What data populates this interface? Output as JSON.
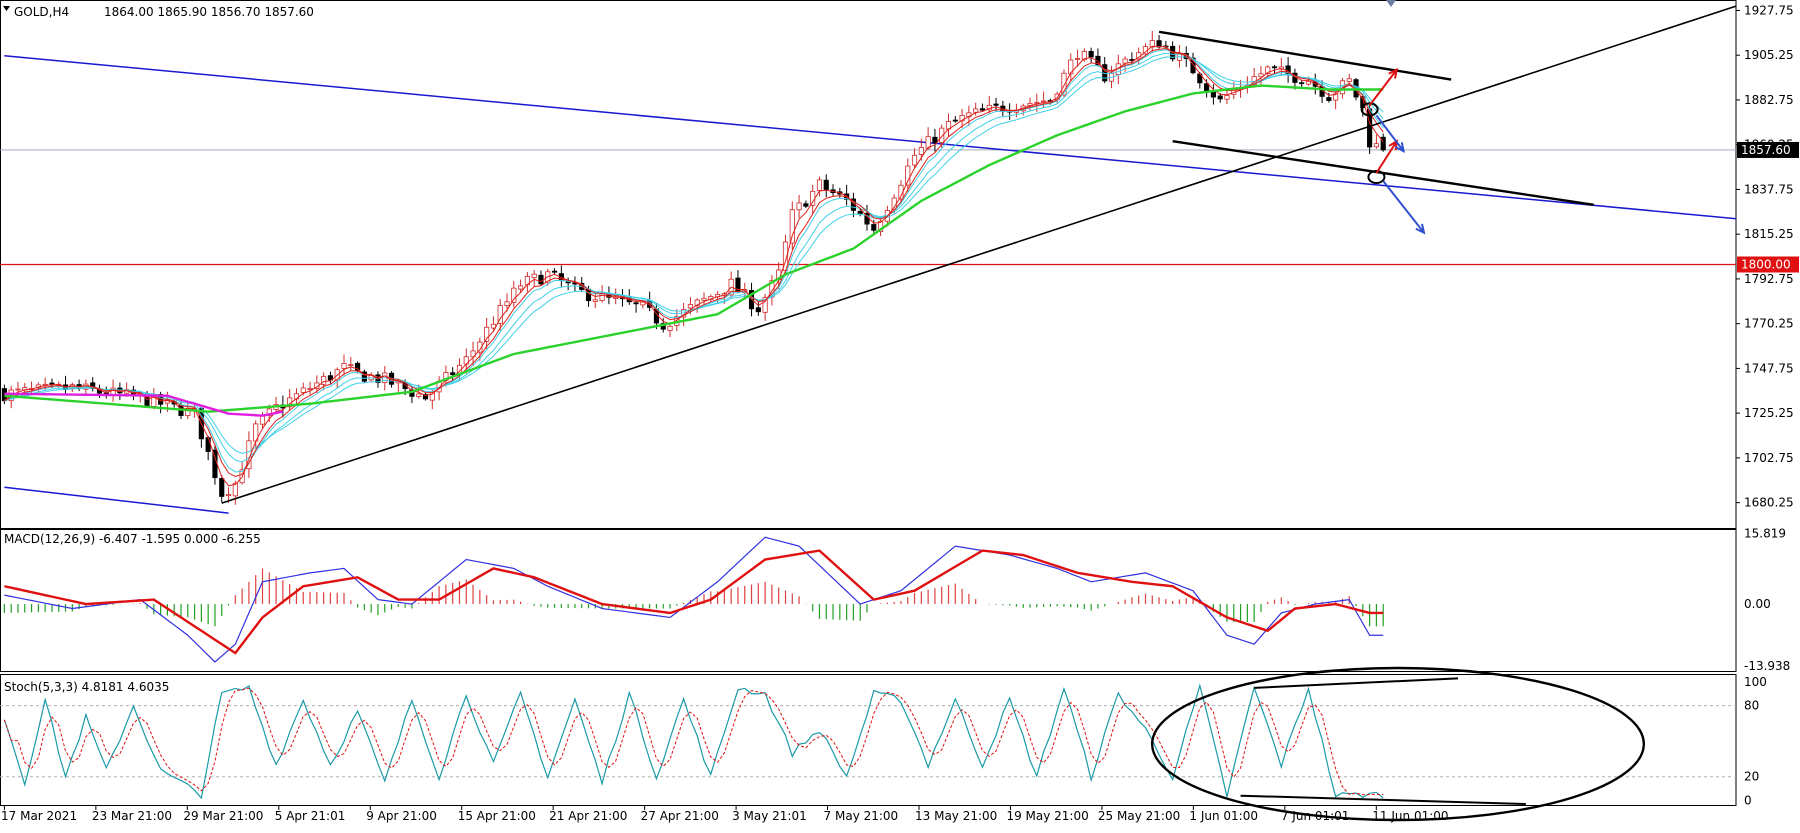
{
  "window": {
    "symbol_label": "GOLD,H4",
    "ohlc_label": "1864.00 1865.90 1856.70 1857.60"
  },
  "colors": {
    "background": "#ffffff",
    "bull_candle": "#d22b2b",
    "bear_candle": "#000000",
    "ema_fast_red": "#e0201a",
    "ema_cyan": "#3fd0e8",
    "ema_green": "#2bd22b",
    "ema_magenta": "#e020e0",
    "trend_black": "#000000",
    "channel_blue": "#1818d0",
    "level_red": "#e01010",
    "macd_line": "#3030e0",
    "macd_signal": "#e01010",
    "hist_pos": "#e04040",
    "hist_neg": "#20a020",
    "stoch_main": "#1a9aa8",
    "stoch_signal": "#e01010",
    "arrow_up": "#e01010",
    "arrow_down": "#3050d0"
  },
  "chart_data": [
    {
      "type": "candlestick",
      "panel": "price",
      "symbol": "GOLD",
      "timeframe": "H4",
      "last_ohlc": {
        "open": 1864.0,
        "high": 1865.9,
        "low": 1856.7,
        "close": 1857.6
      },
      "ylim": [
        1668,
        1932
      ],
      "y_ticks": [
        "1927.75",
        "1905.25",
        "1882.75",
        "1860.25",
        "1837.75",
        "1815.25",
        "1792.75",
        "1770.25",
        "1747.75",
        "1725.25",
        "1702.75",
        "1680.25"
      ],
      "y_tick_values": [
        1927.75,
        1905.25,
        1882.75,
        1860.25,
        1837.75,
        1815.25,
        1792.75,
        1770.25,
        1747.75,
        1725.25,
        1702.75,
        1680.25
      ],
      "x_labels": [
        "17 Mar 2021",
        "23 Mar 21:00",
        "29 Mar 21:00",
        "5 Apr 21:01",
        "9 Apr 21:00",
        "15 Apr 21:00",
        "21 Apr 21:00",
        "27 Apr 21:00",
        "3 May 21:01",
        "7 May 21:00",
        "13 May 21:00",
        "19 May 21:00",
        "25 May 21:00",
        "1 Jun 01:00",
        "7 Jun 01:01",
        "11 Jun 01:00"
      ],
      "bar_count": 255,
      "anchors": [
        [
          0,
          1735
        ],
        [
          10,
          1738
        ],
        [
          20,
          1733
        ],
        [
          28,
          1725
        ],
        [
          31,
          1695
        ],
        [
          32,
          1685
        ],
        [
          34,
          1690
        ],
        [
          37,
          1718
        ],
        [
          40,
          1728
        ],
        [
          45,
          1738
        ],
        [
          50,
          1748
        ],
        [
          52,
          1745
        ],
        [
          56,
          1742
        ],
        [
          62,
          1733
        ],
        [
          68,
          1752
        ],
        [
          72,
          1772
        ],
        [
          76,
          1790
        ],
        [
          80,
          1795
        ],
        [
          84,
          1787
        ],
        [
          88,
          1783
        ],
        [
          94,
          1778
        ],
        [
          97,
          1770
        ],
        [
          102,
          1780
        ],
        [
          107,
          1790
        ],
        [
          111,
          1778
        ],
        [
          114,
          1795
        ],
        [
          116,
          1825
        ],
        [
          120,
          1840
        ],
        [
          124,
          1832
        ],
        [
          128,
          1818
        ],
        [
          130,
          1830
        ],
        [
          134,
          1855
        ],
        [
          139,
          1870
        ],
        [
          142,
          1875
        ],
        [
          148,
          1880
        ],
        [
          154,
          1883
        ],
        [
          158,
          1907
        ],
        [
          162,
          1895
        ],
        [
          166,
          1905
        ],
        [
          170,
          1912
        ],
        [
          175,
          1898
        ],
        [
          179,
          1882
        ],
        [
          182,
          1890
        ],
        [
          186,
          1898
        ],
        [
          192,
          1893
        ],
        [
          195,
          1885
        ],
        [
          198,
          1892
        ],
        [
          200,
          1878
        ],
        [
          201,
          1862
        ],
        [
          203,
          1857
        ]
      ],
      "current_price": {
        "value": 1857.6,
        "label": "1857.60"
      },
      "horizontal_level": {
        "value": 1800.0,
        "label": "1800.00"
      },
      "indicators": {
        "ema_green": [
          [
            0,
            1734
          ],
          [
            30,
            1726
          ],
          [
            45,
            1730
          ],
          [
            60,
            1736
          ],
          [
            75,
            1755
          ],
          [
            90,
            1765
          ],
          [
            105,
            1775
          ],
          [
            115,
            1795
          ],
          [
            125,
            1808
          ],
          [
            135,
            1832
          ],
          [
            145,
            1850
          ],
          [
            155,
            1865
          ],
          [
            165,
            1877
          ],
          [
            175,
            1886
          ],
          [
            185,
            1890
          ],
          [
            195,
            1888
          ]
        ],
        "ema_magenta_segment": [
          [
            0,
            1735
          ],
          [
            24,
            1734
          ],
          [
            33,
            1725
          ],
          [
            38,
            1724
          ],
          [
            41,
            1726
          ]
        ]
      },
      "drawings": {
        "uptrend_line": {
          "from": [
            32,
            1680
          ],
          "to": [
            255,
            1930
          ]
        },
        "blue_channel_upper": {
          "from": [
            0,
            1905
          ],
          "to": [
            255,
            1823
          ]
        },
        "blue_channel_lower": {
          "from": [
            0,
            1688
          ],
          "to": [
            33,
            1675
          ]
        },
        "falling_upper": {
          "from": [
            170,
            1917
          ],
          "to": [
            213,
            1893
          ]
        },
        "falling_lower": {
          "from": [
            172,
            1862
          ],
          "to": [
            234,
            1830
          ]
        },
        "circle_markers": [
          [
            201,
            1878
          ],
          [
            202,
            1844
          ]
        ],
        "arrows_up": [
          [
            [
              201,
              1880
            ],
            [
              205,
              1898
            ]
          ],
          [
            [
              202,
              1846
            ],
            [
              205,
              1862
            ]
          ]
        ],
        "arrows_down": [
          [
            [
              202,
              1875
            ],
            [
              206,
              1857
            ]
          ],
          [
            [
              203,
              1842
            ],
            [
              209,
              1816
            ]
          ]
        ]
      }
    },
    {
      "type": "macd",
      "panel": "macd",
      "label": "MACD(12,26,9) -6.407 -1.595 0.000 -6.255",
      "params": [
        12,
        26,
        9
      ],
      "readout": [
        -6.407,
        -1.595,
        0.0,
        -6.255
      ],
      "ylim": [
        -14.8,
        16.4
      ],
      "y_ticks": [
        "15.819",
        "0.00",
        "-13.938"
      ],
      "macd_anchors": [
        [
          0,
          2
        ],
        [
          10,
          -1
        ],
        [
          20,
          1
        ],
        [
          27,
          -7
        ],
        [
          31,
          -13
        ],
        [
          34,
          -9
        ],
        [
          38,
          5
        ],
        [
          45,
          7
        ],
        [
          50,
          8
        ],
        [
          55,
          1
        ],
        [
          60,
          0
        ],
        [
          68,
          10
        ],
        [
          75,
          8
        ],
        [
          80,
          4
        ],
        [
          88,
          -1
        ],
        [
          98,
          -3
        ],
        [
          105,
          5
        ],
        [
          112,
          15
        ],
        [
          117,
          13
        ],
        [
          126,
          0
        ],
        [
          132,
          3
        ],
        [
          140,
          13
        ],
        [
          148,
          11
        ],
        [
          155,
          8
        ],
        [
          160,
          5
        ],
        [
          168,
          7
        ],
        [
          175,
          3
        ],
        [
          180,
          -7
        ],
        [
          184,
          -9
        ],
        [
          188,
          -2
        ],
        [
          193,
          0
        ],
        [
          198,
          1
        ],
        [
          201,
          -7
        ]
      ],
      "signal_anchors": [
        [
          0,
          4
        ],
        [
          12,
          0
        ],
        [
          22,
          1
        ],
        [
          30,
          -7
        ],
        [
          34,
          -11
        ],
        [
          38,
          -3
        ],
        [
          44,
          4
        ],
        [
          52,
          6
        ],
        [
          58,
          1
        ],
        [
          64,
          1
        ],
        [
          72,
          8
        ],
        [
          78,
          6
        ],
        [
          88,
          0
        ],
        [
          98,
          -2
        ],
        [
          104,
          1
        ],
        [
          112,
          10
        ],
        [
          120,
          12
        ],
        [
          128,
          1
        ],
        [
          134,
          3
        ],
        [
          144,
          12
        ],
        [
          150,
          11
        ],
        [
          158,
          7
        ],
        [
          166,
          5
        ],
        [
          172,
          4
        ],
        [
          180,
          -3
        ],
        [
          186,
          -6
        ],
        [
          190,
          -1
        ],
        [
          196,
          0
        ],
        [
          201,
          -2
        ]
      ]
    },
    {
      "type": "stochastic",
      "panel": "stoch",
      "label": "Stoch(5,3,3) 4.8181 4.6035",
      "params": [
        5,
        3,
        3
      ],
      "readout": [
        4.8181,
        4.6035
      ],
      "ylim": [
        -3,
        105
      ],
      "y_ticks": [
        "100",
        "80",
        "20",
        "0"
      ],
      "levels": [
        80,
        20
      ],
      "main_anchors": [
        [
          0,
          70
        ],
        [
          3,
          15
        ],
        [
          6,
          85
        ],
        [
          9,
          20
        ],
        [
          12,
          70
        ],
        [
          15,
          25
        ],
        [
          19,
          80
        ],
        [
          23,
          25
        ],
        [
          26,
          15
        ],
        [
          29,
          5
        ],
        [
          32,
          90
        ],
        [
          36,
          95
        ],
        [
          40,
          30
        ],
        [
          44,
          85
        ],
        [
          48,
          30
        ],
        [
          52,
          75
        ],
        [
          56,
          15
        ],
        [
          60,
          85
        ],
        [
          64,
          20
        ],
        [
          68,
          90
        ],
        [
          72,
          30
        ],
        [
          76,
          90
        ],
        [
          80,
          20
        ],
        [
          84,
          85
        ],
        [
          88,
          15
        ],
        [
          92,
          90
        ],
        [
          96,
          20
        ],
        [
          100,
          85
        ],
        [
          104,
          20
        ],
        [
          108,
          95
        ],
        [
          112,
          90
        ],
        [
          116,
          40
        ],
        [
          120,
          60
        ],
        [
          124,
          20
        ],
        [
          128,
          90
        ],
        [
          132,
          85
        ],
        [
          136,
          30
        ],
        [
          140,
          85
        ],
        [
          144,
          30
        ],
        [
          148,
          85
        ],
        [
          152,
          20
        ],
        [
          156,
          95
        ],
        [
          160,
          20
        ],
        [
          164,
          90
        ],
        [
          168,
          60
        ],
        [
          172,
          20
        ],
        [
          176,
          95
        ],
        [
          180,
          4
        ],
        [
          184,
          95
        ],
        [
          188,
          30
        ],
        [
          192,
          95
        ],
        [
          196,
          4
        ],
        [
          200,
          5
        ]
      ],
      "annotation": {
        "shape": "ellipse",
        "upper_line": [
          [
            184,
            95
          ],
          [
            214,
            103
          ]
        ],
        "lower_line": [
          [
            182,
            4
          ],
          [
            224,
            -3
          ]
        ]
      }
    }
  ]
}
